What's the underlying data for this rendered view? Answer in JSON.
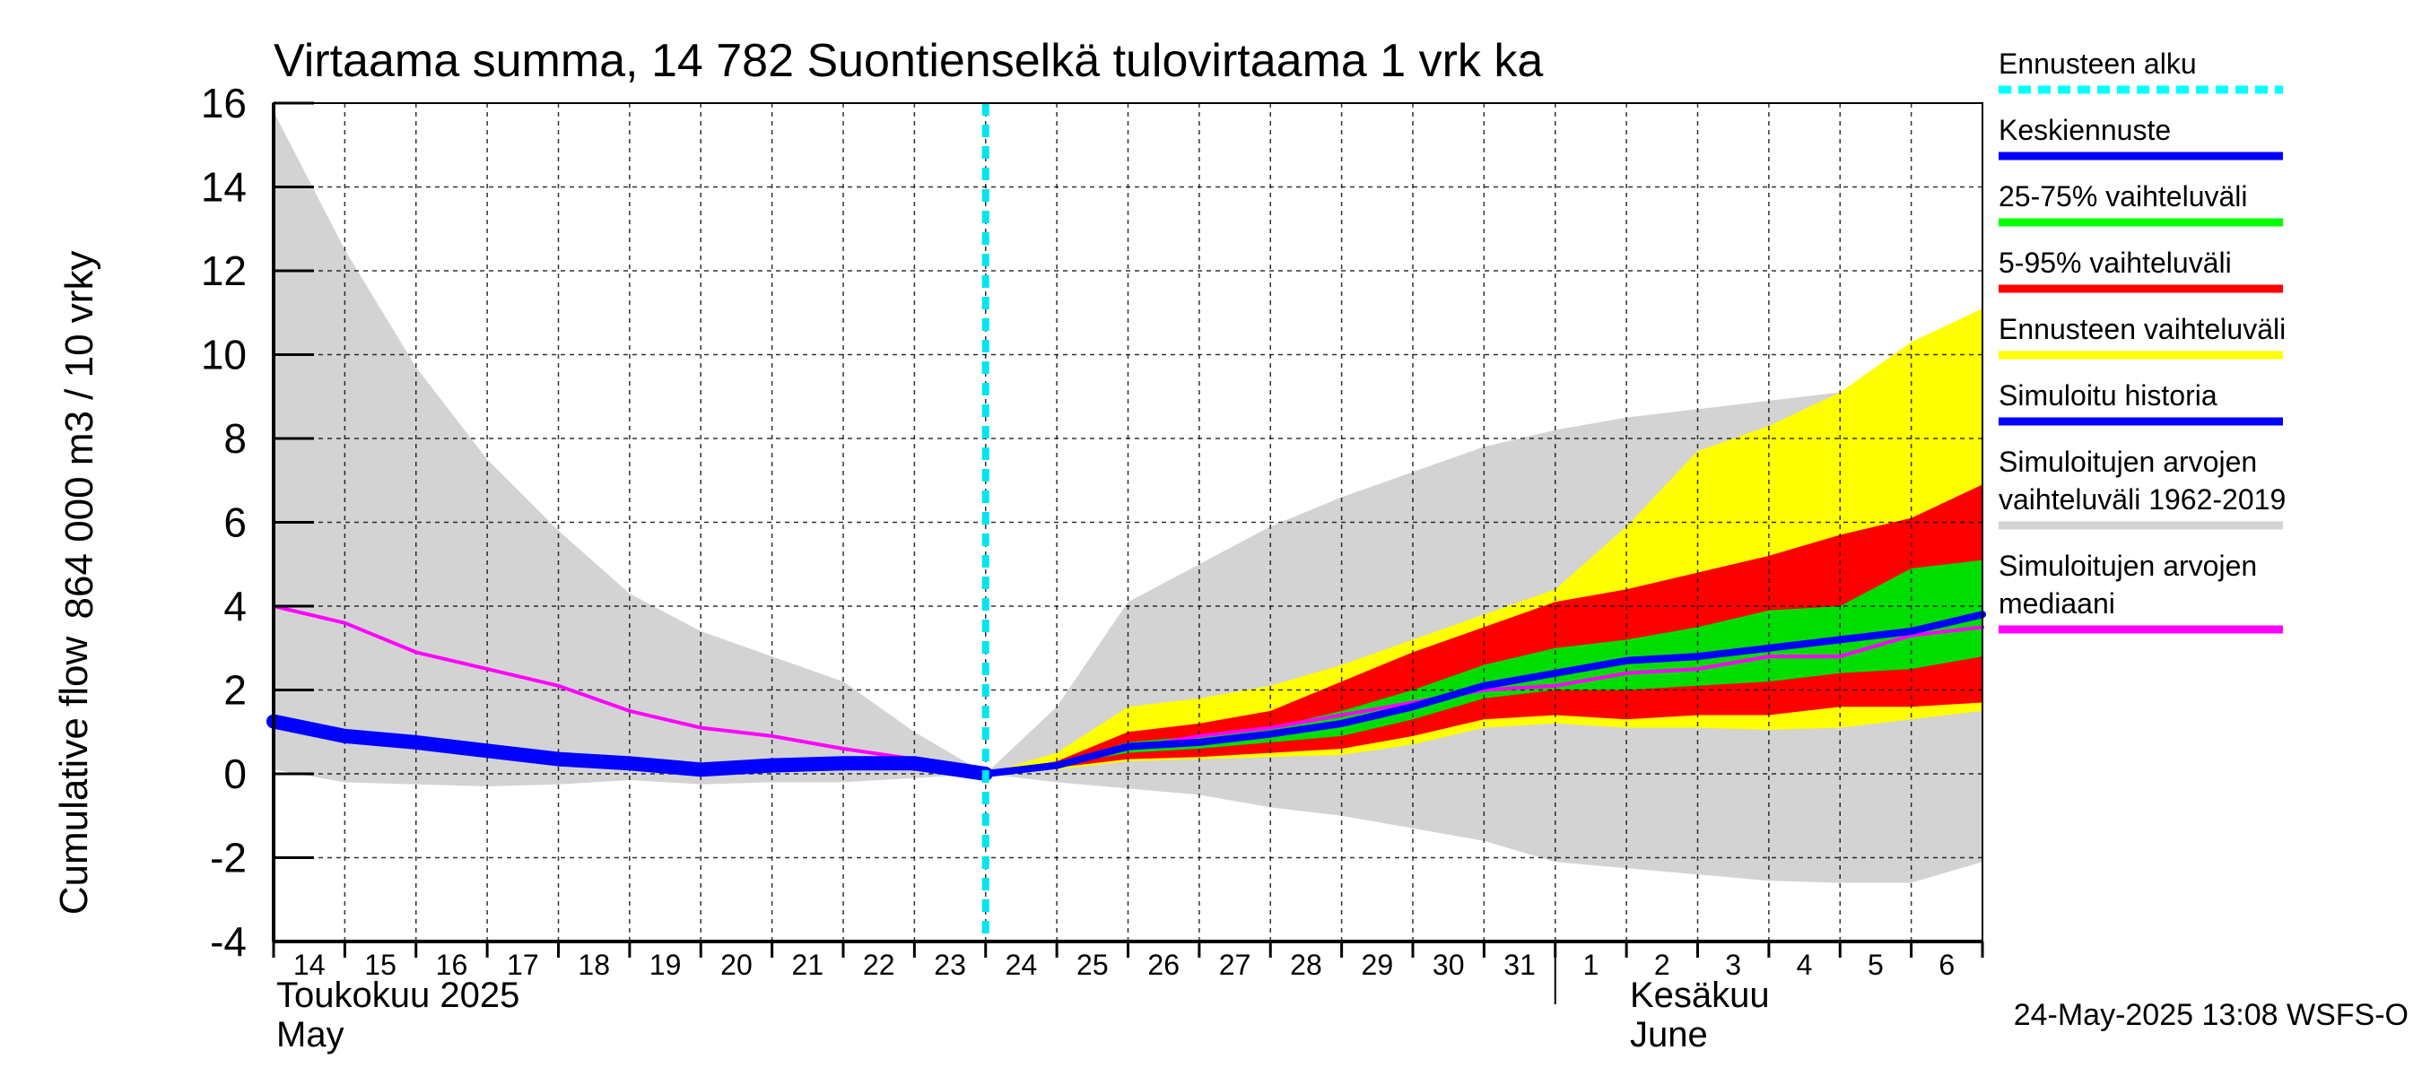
{
  "chart_data": {
    "type": "area",
    "title": "Virtaama summa, 14 782 Suontienselkä tulovirtaama 1 vrk ka",
    "ylabel_fi": "864 000 m3 / 10 vrky",
    "ylabel_en": "Cumulative flow",
    "ylim": [
      -4,
      16
    ],
    "yticks": [
      "-4",
      "-2",
      "0",
      "2",
      "4",
      "6",
      "8",
      "10",
      "12",
      "14",
      "16"
    ],
    "x_dates": [
      "2025-05-14",
      "2025-05-15",
      "2025-05-16",
      "2025-05-17",
      "2025-05-18",
      "2025-05-19",
      "2025-05-20",
      "2025-05-21",
      "2025-05-22",
      "2025-05-23",
      "2025-05-24",
      "2025-05-25",
      "2025-05-26",
      "2025-05-27",
      "2025-05-28",
      "2025-05-29",
      "2025-05-30",
      "2025-05-31",
      "2025-06-01",
      "2025-06-02",
      "2025-06-03",
      "2025-06-04",
      "2025-06-05",
      "2025-06-06",
      "2025-06-07"
    ],
    "xtick_labels": [
      "14",
      "15",
      "16",
      "17",
      "18",
      "19",
      "20",
      "21",
      "22",
      "23",
      "24",
      "25",
      "26",
      "27",
      "28",
      "29",
      "30",
      "31",
      "1",
      "2",
      "3",
      "4",
      "5",
      "6"
    ],
    "month_labels": {
      "may_fi": "Toukokuu  2025",
      "may_en": "May",
      "june_fi": "Kesäkuu",
      "june_en": "June"
    },
    "forecast_start": "2025-05-24",
    "series": [
      {
        "name": "Simuloitujen arvojen vaihteluväli 1962-2019",
        "color": "#d3d3d3",
        "upper": [
          15.8,
          12.5,
          9.7,
          7.5,
          5.8,
          4.3,
          3.4,
          2.8,
          2.2,
          1.0,
          0.0,
          1.6,
          4.1,
          5.0,
          5.9,
          6.6,
          7.2,
          7.8,
          8.2,
          8.5,
          8.7,
          8.9,
          9.1,
          9.2,
          9.3
        ],
        "lower": [
          0.1,
          -0.2,
          -0.25,
          -0.3,
          -0.25,
          -0.15,
          -0.25,
          -0.2,
          -0.2,
          -0.1,
          0.0,
          -0.2,
          -0.35,
          -0.5,
          -0.8,
          -1.0,
          -1.3,
          -1.6,
          -2.1,
          -2.25,
          -2.4,
          -2.55,
          -2.6,
          -2.6,
          -2.1
        ]
      },
      {
        "name": "Ennusteen vaihteluväli",
        "color": "#ffff00",
        "upper": [
          null,
          null,
          null,
          null,
          null,
          null,
          null,
          null,
          null,
          null,
          0.0,
          0.5,
          1.6,
          1.8,
          2.1,
          2.6,
          3.2,
          3.8,
          4.4,
          5.9,
          7.7,
          8.3,
          9.1,
          10.3,
          11.1
        ],
        "lower": [
          null,
          null,
          null,
          null,
          null,
          null,
          null,
          null,
          null,
          null,
          0.0,
          0.1,
          0.3,
          0.35,
          0.4,
          0.45,
          0.7,
          1.1,
          1.2,
          1.1,
          1.1,
          1.05,
          1.1,
          1.3,
          1.5
        ]
      },
      {
        "name": "5-95% vaihteluväli",
        "color": "#ff0000",
        "upper": [
          null,
          null,
          null,
          null,
          null,
          null,
          null,
          null,
          null,
          null,
          0.0,
          0.3,
          1.0,
          1.2,
          1.5,
          2.2,
          2.9,
          3.5,
          4.1,
          4.4,
          4.8,
          5.2,
          5.7,
          6.1,
          6.9
        ],
        "lower": [
          null,
          null,
          null,
          null,
          null,
          null,
          null,
          null,
          null,
          null,
          0.0,
          0.15,
          0.35,
          0.4,
          0.5,
          0.6,
          0.9,
          1.3,
          1.4,
          1.3,
          1.4,
          1.4,
          1.6,
          1.6,
          1.7
        ]
      },
      {
        "name": "25-75% vaihteluväli",
        "color": "#00dd00",
        "upper": [
          null,
          null,
          null,
          null,
          null,
          null,
          null,
          null,
          null,
          null,
          0.0,
          0.25,
          0.75,
          0.9,
          1.1,
          1.5,
          2.0,
          2.6,
          3.0,
          3.2,
          3.5,
          3.9,
          4.0,
          4.9,
          5.1
        ],
        "lower": [
          null,
          null,
          null,
          null,
          null,
          null,
          null,
          null,
          null,
          null,
          0.0,
          0.2,
          0.5,
          0.6,
          0.75,
          0.9,
          1.3,
          1.8,
          2.0,
          2.0,
          2.1,
          2.2,
          2.4,
          2.5,
          2.8
        ]
      },
      {
        "name": "Simuloitujen arvojen mediaani",
        "color": "#ff00ff",
        "values": [
          4.0,
          3.6,
          2.9,
          2.5,
          2.1,
          1.5,
          1.1,
          0.9,
          0.6,
          0.35,
          0.0,
          0.25,
          0.6,
          0.9,
          1.1,
          1.4,
          1.7,
          2.0,
          2.1,
          2.4,
          2.5,
          2.8,
          2.8,
          3.3,
          3.5
        ]
      },
      {
        "name": "Simuloitu historia",
        "color": "#0000ff",
        "values": [
          1.25,
          0.9,
          0.75,
          0.55,
          0.35,
          0.25,
          0.1,
          0.2,
          0.25,
          0.25,
          0.0,
          null,
          null,
          null,
          null,
          null,
          null,
          null,
          null,
          null,
          null,
          null,
          null,
          null,
          null
        ]
      },
      {
        "name": "Keskiennuste",
        "color": "#0000ff",
        "values": [
          null,
          null,
          null,
          null,
          null,
          null,
          null,
          null,
          null,
          null,
          0.0,
          0.2,
          0.65,
          0.75,
          0.95,
          1.2,
          1.6,
          2.1,
          2.4,
          2.7,
          2.8,
          3.0,
          3.2,
          3.4,
          3.8
        ]
      }
    ],
    "legend": [
      {
        "label": "Ennusteen alku",
        "color": "#00ffff",
        "style": "dotted"
      },
      {
        "label": "Keskiennuste",
        "color": "#0000ff",
        "style": "line"
      },
      {
        "label": "25-75% vaihteluväli",
        "color": "#00ff00",
        "style": "line"
      },
      {
        "label": "5-95% vaihteluväli",
        "color": "#ff0000",
        "style": "line"
      },
      {
        "label": "Ennusteen vaihteluväli",
        "color": "#ffff00",
        "style": "line"
      },
      {
        "label": "Simuloitu historia",
        "color": "#0000ff",
        "style": "line"
      },
      {
        "label": "Simuloitujen arvojen",
        "label2": "vaihteluväli 1962-2019",
        "color": "#d3d3d3",
        "style": "line"
      },
      {
        "label": "Simuloitujen arvojen",
        "label2": "mediaani",
        "color": "#ff00ff",
        "style": "line"
      }
    ],
    "legend_position": "right",
    "grid": true,
    "timestamp": "24-May-2025 13:08 WSFS-O"
  }
}
